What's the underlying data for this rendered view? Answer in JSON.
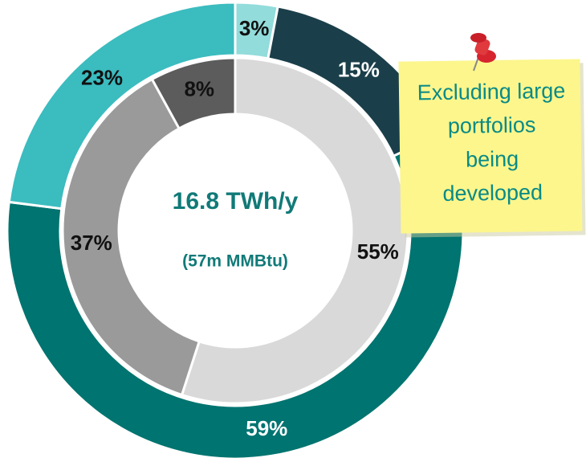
{
  "chart_data": {
    "type": "donut",
    "center_title": "16.8 TWh/y",
    "center_subtitle": "(57m MMBtu)",
    "rings": [
      {
        "values": [
          3,
          15,
          59,
          23
        ],
        "value_labels": [
          "3%",
          "15%",
          "59%",
          "23%"
        ],
        "colors": [
          "#92dcdb",
          "#1b3f4a",
          "#007470",
          "#3bbcbf"
        ],
        "label_colors": [
          "#111111",
          "#ffffff",
          "#ffffff",
          "#111111"
        ]
      },
      {
        "values": [
          55,
          37,
          8
        ],
        "value_labels": [
          "55%",
          "37%",
          "8%"
        ],
        "colors": [
          "#d9d9d9",
          "#9a9a9a",
          "#5c5c5c"
        ],
        "label_colors": [
          "#111111",
          "#111111",
          "#111111"
        ]
      }
    ]
  },
  "note": {
    "lines": [
      "Excluding large",
      "portfolios",
      "being",
      "developed"
    ]
  }
}
